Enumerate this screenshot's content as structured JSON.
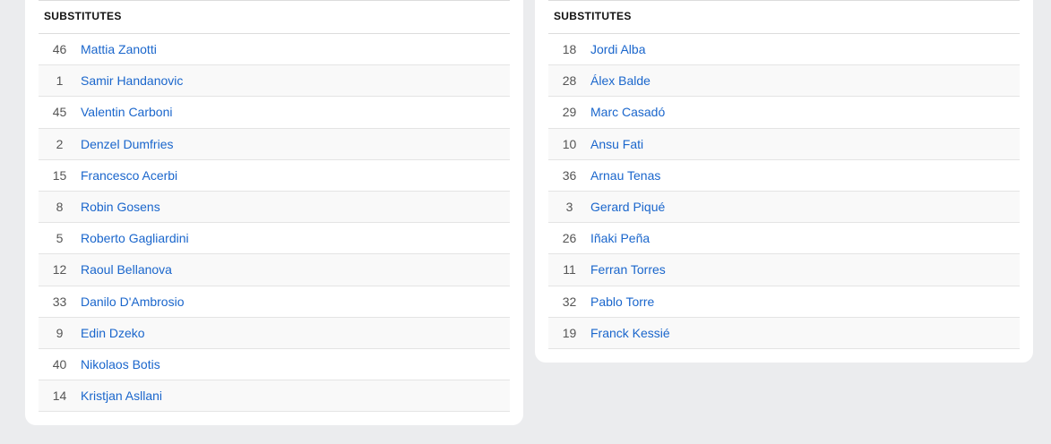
{
  "left": {
    "title": "SUBSTITUTES",
    "players": [
      {
        "number": "46",
        "name": "Mattia Zanotti"
      },
      {
        "number": "1",
        "name": "Samir Handanovic"
      },
      {
        "number": "45",
        "name": "Valentin Carboni"
      },
      {
        "number": "2",
        "name": "Denzel Dumfries"
      },
      {
        "number": "15",
        "name": "Francesco Acerbi"
      },
      {
        "number": "8",
        "name": "Robin Gosens"
      },
      {
        "number": "5",
        "name": "Roberto Gagliardini"
      },
      {
        "number": "12",
        "name": "Raoul Bellanova"
      },
      {
        "number": "33",
        "name": "Danilo D'Ambrosio"
      },
      {
        "number": "9",
        "name": "Edin Dzeko"
      },
      {
        "number": "40",
        "name": "Nikolaos Botis"
      },
      {
        "number": "14",
        "name": "Kristjan Asllani"
      }
    ]
  },
  "right": {
    "title": "SUBSTITUTES",
    "players": [
      {
        "number": "18",
        "name": "Jordi Alba"
      },
      {
        "number": "28",
        "name": "Álex Balde"
      },
      {
        "number": "29",
        "name": "Marc Casadó"
      },
      {
        "number": "10",
        "name": "Ansu Fati"
      },
      {
        "number": "36",
        "name": "Arnau Tenas"
      },
      {
        "number": "3",
        "name": "Gerard Piqué"
      },
      {
        "number": "26",
        "name": "Iñaki Peña"
      },
      {
        "number": "11",
        "name": "Ferran Torres"
      },
      {
        "number": "32",
        "name": "Pablo Torre"
      },
      {
        "number": "19",
        "name": "Franck Kessié"
      }
    ]
  }
}
